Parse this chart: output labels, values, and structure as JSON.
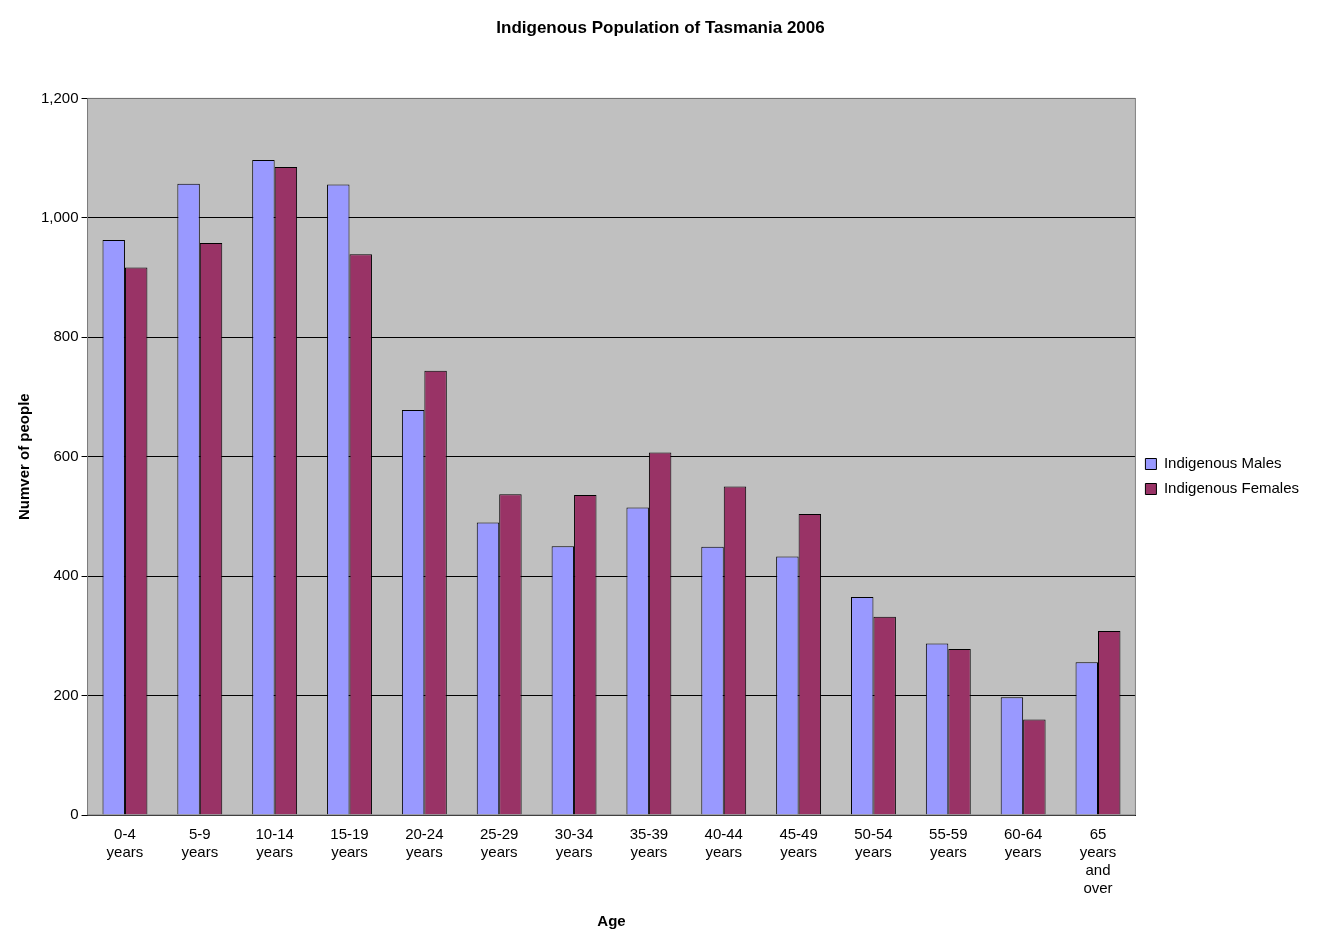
{
  "chart_data": {
    "type": "bar",
    "title": "Indigenous Population of Tasmania 2006",
    "xlabel": "Age",
    "ylabel": "Numver of people",
    "categories": [
      "0-4 years",
      "5-9 years",
      "10-14 years",
      "15-19 years",
      "20-24 years",
      "25-29 years",
      "30-34 years",
      "35-39 years",
      "40-44 years",
      "45-49 years",
      "50-54 years",
      "55-59 years",
      "60-64 years",
      "65 years and over"
    ],
    "series": [
      {
        "name": "Indigenous Males",
        "color": "#9999ff",
        "values": [
          963,
          1057,
          1097,
          1056,
          678,
          490,
          450,
          515,
          449,
          433,
          365,
          287,
          197,
          256
        ]
      },
      {
        "name": "Indigenous Females",
        "color": "#993366",
        "values": [
          917,
          958,
          1085,
          939,
          744,
          537,
          536,
          607,
          550,
          504,
          332,
          278,
          160,
          308
        ]
      }
    ],
    "ylim": [
      0,
      1200
    ],
    "yticks": [
      0,
      200,
      400,
      600,
      800,
      {
        "value": 1000,
        "label": "1,000"
      },
      {
        "value": 1200,
        "label": "1,200"
      }
    ],
    "grid": "y",
    "legend": "right"
  }
}
